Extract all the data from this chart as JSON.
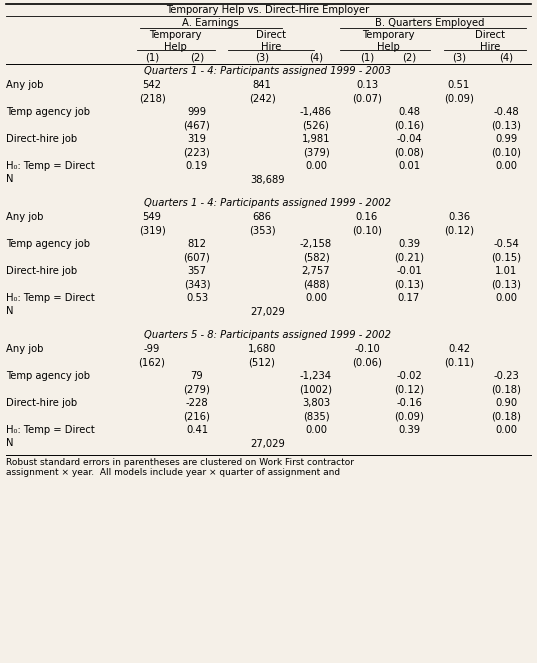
{
  "title_top": "Temporary Help vs. Direct-Hire Employer",
  "bg_color": "#f5f0e8",
  "header": {
    "section_A": "A. Earnings",
    "section_B": "B. Quarters Employed",
    "nums": [
      "(1)",
      "(2)",
      "(3)",
      "(4)",
      "(1)",
      "(2)",
      "(3)",
      "(4)"
    ]
  },
  "col_x": {
    "label": 0.06,
    "c1": 1.55,
    "c2": 2.05,
    "c3": 2.72,
    "c4": 3.28,
    "c5": 3.82,
    "c6": 4.28,
    "c7": 4.8,
    "c8": 5.25
  },
  "sections": [
    {
      "subtitle": "Quarters 1 - 4: Participants assigned 1999 - 2003",
      "rows": [
        {
          "label": "Any job",
          "c1": "542",
          "c2": "",
          "c3": "841",
          "c4": "",
          "c5": "0.13",
          "c6": "",
          "c7": "0.51",
          "c8": ""
        },
        {
          "label": "",
          "c1": "(218)",
          "c2": "",
          "c3": "(242)",
          "c4": "",
          "c5": "(0.07)",
          "c6": "",
          "c7": "(0.09)",
          "c8": ""
        },
        {
          "label": "Temp agency job",
          "c1": "",
          "c2": "999",
          "c3": "",
          "c4": "-1,486",
          "c5": "",
          "c6": "0.48",
          "c7": "",
          "c8": "-0.48"
        },
        {
          "label": "",
          "c1": "",
          "c2": "(467)",
          "c3": "",
          "c4": "(526)",
          "c5": "",
          "c6": "(0.16)",
          "c7": "",
          "c8": "(0.13)"
        },
        {
          "label": "Direct-hire job",
          "c1": "",
          "c2": "319",
          "c3": "",
          "c4": "1,981",
          "c5": "",
          "c6": "-0.04",
          "c7": "",
          "c8": "0.99"
        },
        {
          "label": "",
          "c1": "",
          "c2": "(223)",
          "c3": "",
          "c4": "(379)",
          "c5": "",
          "c6": "(0.08)",
          "c7": "",
          "c8": "(0.10)"
        },
        {
          "label": "H₀: Temp = Direct",
          "c1": "",
          "c2": "0.19",
          "c3": "",
          "c4": "0.00",
          "c5": "",
          "c6": "0.01",
          "c7": "",
          "c8": "0.00"
        },
        {
          "label": "N",
          "c1": "",
          "c2": "",
          "c3": "38,689",
          "c4": "",
          "c5": "",
          "c6": "",
          "c7": "",
          "c8": ""
        }
      ]
    },
    {
      "subtitle": "Quarters 1 - 4: Participants assigned 1999 - 2002",
      "rows": [
        {
          "label": "Any job",
          "c1": "549",
          "c2": "",
          "c3": "686",
          "c4": "",
          "c5": "0.16",
          "c6": "",
          "c7": "0.36",
          "c8": ""
        },
        {
          "label": "",
          "c1": "(319)",
          "c2": "",
          "c3": "(353)",
          "c4": "",
          "c5": "(0.10)",
          "c6": "",
          "c7": "(0.12)",
          "c8": ""
        },
        {
          "label": "Temp agency job",
          "c1": "",
          "c2": "812",
          "c3": "",
          "c4": "-2,158",
          "c5": "",
          "c6": "0.39",
          "c7": "",
          "c8": "-0.54"
        },
        {
          "label": "",
          "c1": "",
          "c2": "(607)",
          "c3": "",
          "c4": "(582)",
          "c5": "",
          "c6": "(0.21)",
          "c7": "",
          "c8": "(0.15)"
        },
        {
          "label": "Direct-hire job",
          "c1": "",
          "c2": "357",
          "c3": "",
          "c4": "2,757",
          "c5": "",
          "c6": "-0.01",
          "c7": "",
          "c8": "1.01"
        },
        {
          "label": "",
          "c1": "",
          "c2": "(343)",
          "c3": "",
          "c4": "(488)",
          "c5": "",
          "c6": "(0.13)",
          "c7": "",
          "c8": "(0.13)"
        },
        {
          "label": "H₀: Temp = Direct",
          "c1": "",
          "c2": "0.53",
          "c3": "",
          "c4": "0.00",
          "c5": "",
          "c6": "0.17",
          "c7": "",
          "c8": "0.00"
        },
        {
          "label": "N",
          "c1": "",
          "c2": "",
          "c3": "27,029",
          "c4": "",
          "c5": "",
          "c6": "",
          "c7": "",
          "c8": ""
        }
      ]
    },
    {
      "subtitle": "Quarters 5 - 8: Participants assigned 1999 - 2002",
      "rows": [
        {
          "label": "Any job",
          "c1": "-99",
          "c2": "",
          "c3": "1,680",
          "c4": "",
          "c5": "-0.10",
          "c6": "",
          "c7": "0.42",
          "c8": ""
        },
        {
          "label": "",
          "c1": "(162)",
          "c2": "",
          "c3": "(512)",
          "c4": "",
          "c5": "(0.06)",
          "c6": "",
          "c7": "(0.11)",
          "c8": ""
        },
        {
          "label": "Temp agency job",
          "c1": "",
          "c2": "79",
          "c3": "",
          "c4": "-1,234",
          "c5": "",
          "c6": "-0.02",
          "c7": "",
          "c8": "-0.23"
        },
        {
          "label": "",
          "c1": "",
          "c2": "(279)",
          "c3": "",
          "c4": "(1002)",
          "c5": "",
          "c6": "(0.12)",
          "c7": "",
          "c8": "(0.18)"
        },
        {
          "label": "Direct-hire job",
          "c1": "",
          "c2": "-228",
          "c3": "",
          "c4": "3,803",
          "c5": "",
          "c6": "-0.16",
          "c7": "",
          "c8": "0.90"
        },
        {
          "label": "",
          "c1": "",
          "c2": "(216)",
          "c3": "",
          "c4": "(835)",
          "c5": "",
          "c6": "(0.09)",
          "c7": "",
          "c8": "(0.18)"
        },
        {
          "label": "H₀: Temp = Direct",
          "c1": "",
          "c2": "0.41",
          "c3": "",
          "c4": "0.00",
          "c5": "",
          "c6": "0.39",
          "c7": "",
          "c8": "0.00"
        },
        {
          "label": "N",
          "c1": "",
          "c2": "",
          "c3": "27,029",
          "c4": "",
          "c5": "",
          "c6": "",
          "c7": "",
          "c8": ""
        }
      ]
    }
  ],
  "footnote": "Robust standard errors in parentheses are clustered on Work First contractor\nassignment × year.  All models include year × quarter of assignment and"
}
